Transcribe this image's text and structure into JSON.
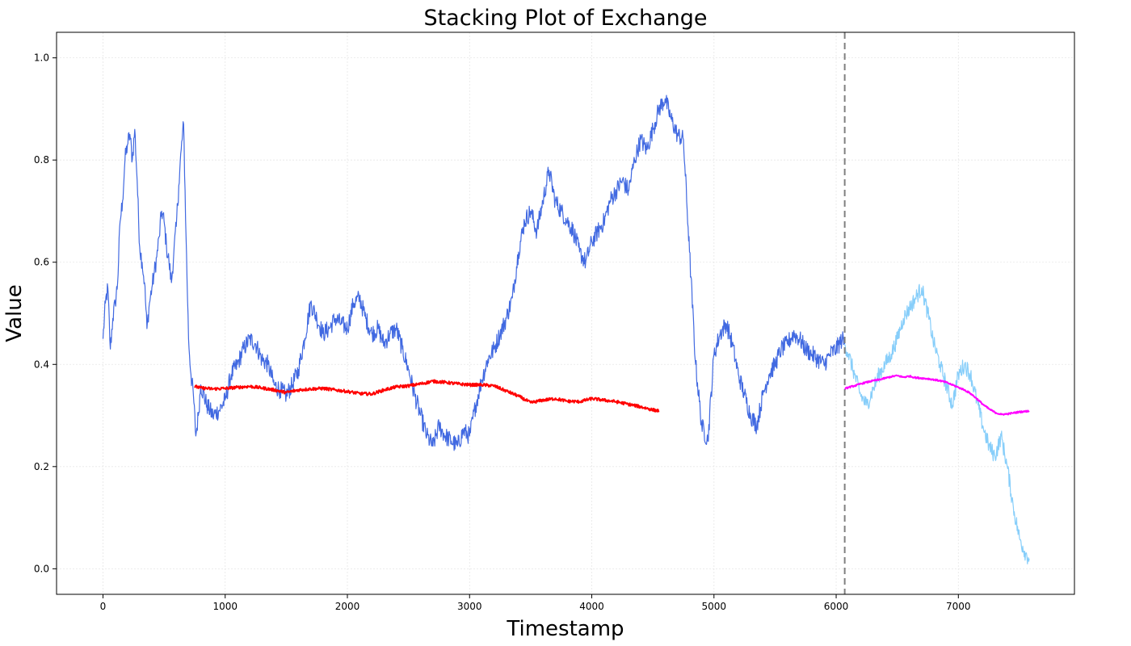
{
  "chart_data": {
    "type": "line",
    "title": "Stacking Plot of Exchange",
    "xlabel": "Timestamp",
    "ylabel": "Value",
    "xlim": [
      -380,
      7950
    ],
    "ylim": [
      -0.05,
      1.05
    ],
    "xticks": [
      0,
      1000,
      2000,
      3000,
      4000,
      5000,
      6000,
      7000
    ],
    "yticks": [
      0.0,
      0.2,
      0.4,
      0.6,
      0.8,
      1.0
    ],
    "xtick_labels": [
      "0",
      "1000",
      "2000",
      "3000",
      "4000",
      "5000",
      "6000",
      "7000"
    ],
    "ytick_labels": [
      "0.0",
      "0.2",
      "0.4",
      "0.6",
      "0.8",
      "1.0"
    ],
    "grid": true,
    "legend": "none",
    "split_marker": {
      "x": 6070,
      "style": "dashed",
      "color": "#808080"
    },
    "series": [
      {
        "color": "#4169e1",
        "noise": 0.018,
        "x": [
          0,
          20,
          40,
          60,
          80,
          100,
          120,
          140,
          160,
          180,
          200,
          220,
          240,
          260,
          280,
          300,
          320,
          340,
          360,
          380,
          400,
          420,
          440,
          460,
          480,
          500,
          520,
          540,
          560,
          580,
          600,
          620,
          640,
          660,
          680,
          700,
          720,
          740,
          760,
          780,
          800,
          850,
          900,
          950,
          1000,
          1050,
          1100,
          1150,
          1200,
          1250,
          1300,
          1350,
          1400,
          1450,
          1500,
          1550,
          1600,
          1650,
          1700,
          1750,
          1800,
          1850,
          1900,
          1950,
          2000,
          2050,
          2100,
          2150,
          2200,
          2250,
          2300,
          2350,
          2400,
          2450,
          2500,
          2550,
          2600,
          2650,
          2700,
          2750,
          2800,
          2850,
          2900,
          2950,
          3000,
          3050,
          3100,
          3150,
          3200,
          3250,
          3300,
          3350,
          3400,
          3450,
          3500,
          3550,
          3600,
          3650,
          3700,
          3750,
          3800,
          3850,
          3900,
          3950,
          4000,
          4050,
          4100,
          4150,
          4200,
          4250,
          4300,
          4350,
          4400,
          4450,
          4500,
          4550,
          4600,
          4650,
          4700,
          4750,
          4800,
          4850,
          4900,
          4950,
          5000,
          5050,
          5100,
          5150,
          5200,
          5250,
          5300,
          5350,
          5400,
          5450,
          5500,
          5550,
          5600,
          5650,
          5700,
          5750,
          5800,
          5850,
          5900,
          5950,
          6000,
          6050,
          6070
        ],
        "y": [
          0.45,
          0.52,
          0.55,
          0.43,
          0.49,
          0.52,
          0.56,
          0.68,
          0.72,
          0.8,
          0.83,
          0.85,
          0.8,
          0.86,
          0.76,
          0.63,
          0.6,
          0.56,
          0.47,
          0.52,
          0.55,
          0.58,
          0.61,
          0.65,
          0.7,
          0.68,
          0.63,
          0.6,
          0.56,
          0.62,
          0.67,
          0.75,
          0.82,
          0.87,
          0.65,
          0.45,
          0.38,
          0.34,
          0.26,
          0.3,
          0.36,
          0.32,
          0.3,
          0.31,
          0.33,
          0.38,
          0.4,
          0.43,
          0.45,
          0.44,
          0.41,
          0.4,
          0.36,
          0.35,
          0.34,
          0.36,
          0.39,
          0.45,
          0.52,
          0.49,
          0.46,
          0.47,
          0.49,
          0.48,
          0.47,
          0.52,
          0.53,
          0.49,
          0.46,
          0.47,
          0.44,
          0.46,
          0.47,
          0.43,
          0.39,
          0.34,
          0.3,
          0.26,
          0.24,
          0.28,
          0.26,
          0.25,
          0.24,
          0.27,
          0.26,
          0.32,
          0.37,
          0.41,
          0.43,
          0.46,
          0.49,
          0.53,
          0.62,
          0.68,
          0.7,
          0.66,
          0.72,
          0.78,
          0.72,
          0.7,
          0.68,
          0.66,
          0.62,
          0.6,
          0.64,
          0.66,
          0.68,
          0.72,
          0.74,
          0.76,
          0.74,
          0.8,
          0.84,
          0.82,
          0.86,
          0.9,
          0.92,
          0.88,
          0.85,
          0.84,
          0.62,
          0.4,
          0.28,
          0.25,
          0.42,
          0.46,
          0.48,
          0.44,
          0.38,
          0.34,
          0.3,
          0.28,
          0.34,
          0.38,
          0.4,
          0.43,
          0.44,
          0.46,
          0.45,
          0.43,
          0.42,
          0.41,
          0.4,
          0.42,
          0.43,
          0.45,
          0.44
        ]
      },
      {
        "color": "#87cefa",
        "noise": 0.016,
        "x": [
          6070,
          6100,
          6150,
          6200,
          6250,
          6300,
          6350,
          6400,
          6450,
          6500,
          6550,
          6600,
          6650,
          6700,
          6750,
          6800,
          6850,
          6900,
          6950,
          7000,
          7050,
          7100,
          7150,
          7200,
          7250,
          7300,
          7350,
          7400,
          7450,
          7500,
          7550,
          7580
        ],
        "y": [
          0.44,
          0.42,
          0.38,
          0.34,
          0.32,
          0.35,
          0.38,
          0.4,
          0.42,
          0.45,
          0.49,
          0.51,
          0.53,
          0.55,
          0.5,
          0.44,
          0.4,
          0.36,
          0.32,
          0.38,
          0.4,
          0.38,
          0.33,
          0.28,
          0.24,
          0.22,
          0.26,
          0.2,
          0.12,
          0.06,
          0.03,
          0.02
        ]
      },
      {
        "color": "#ff0000",
        "noise": 0.003,
        "x": [
          750,
          800,
          900,
          1000,
          1100,
          1200,
          1300,
          1400,
          1500,
          1600,
          1700,
          1800,
          1900,
          2000,
          2100,
          2200,
          2300,
          2400,
          2500,
          2600,
          2700,
          2800,
          2900,
          3000,
          3100,
          3200,
          3300,
          3400,
          3500,
          3600,
          3700,
          3800,
          3900,
          4000,
          4100,
          4200,
          4300,
          4400,
          4500,
          4550
        ],
        "y": [
          0.357,
          0.354,
          0.352,
          0.353,
          0.355,
          0.357,
          0.354,
          0.35,
          0.345,
          0.35,
          0.352,
          0.353,
          0.35,
          0.347,
          0.343,
          0.342,
          0.35,
          0.356,
          0.358,
          0.362,
          0.367,
          0.365,
          0.362,
          0.36,
          0.36,
          0.358,
          0.348,
          0.338,
          0.325,
          0.33,
          0.333,
          0.328,
          0.327,
          0.333,
          0.33,
          0.327,
          0.322,
          0.317,
          0.311,
          0.309
        ]
      },
      {
        "color": "#ff00ff",
        "noise": 0.0015,
        "x": [
          6070,
          6100,
          6150,
          6200,
          6250,
          6300,
          6350,
          6400,
          6450,
          6500,
          6550,
          6600,
          6650,
          6700,
          6750,
          6800,
          6850,
          6900,
          6950,
          7000,
          7050,
          7100,
          7150,
          7200,
          7250,
          7300,
          7350,
          7400,
          7450,
          7500,
          7550,
          7580
        ],
        "y": [
          0.352,
          0.355,
          0.358,
          0.362,
          0.365,
          0.368,
          0.37,
          0.373,
          0.376,
          0.378,
          0.375,
          0.377,
          0.374,
          0.373,
          0.372,
          0.37,
          0.368,
          0.365,
          0.36,
          0.355,
          0.35,
          0.343,
          0.333,
          0.322,
          0.313,
          0.306,
          0.302,
          0.303,
          0.305,
          0.307,
          0.308,
          0.309
        ]
      }
    ]
  }
}
